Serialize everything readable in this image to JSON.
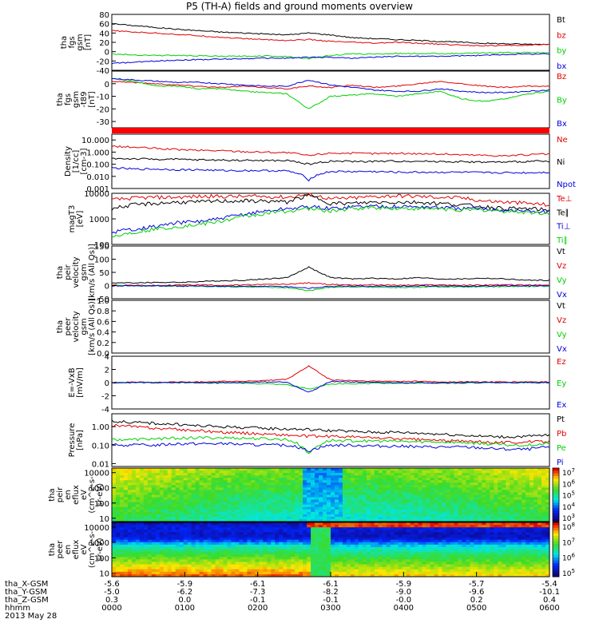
{
  "title": "P5 (TH-A) fields and ground moments overview",
  "colors": {
    "black": "#000000",
    "red": "#e00000",
    "green": "#00d000",
    "blue": "#0000e0"
  },
  "chart_data": [
    {
      "type": "line",
      "ylabel": [
        "tha",
        "fgs",
        "gsm",
        "[nT]"
      ],
      "ylim": [
        -40,
        80
      ],
      "yticks": [
        "80",
        "60",
        "40",
        "20",
        "0",
        "-20",
        "-40"
      ],
      "series": [
        {
          "name": "Bt",
          "color": "#000000",
          "values": [
            60,
            56,
            52,
            48,
            45,
            42,
            40,
            38,
            36,
            40,
            36,
            30,
            28,
            26,
            24,
            22,
            20,
            18,
            17,
            16,
            16
          ]
        },
        {
          "name": "bz",
          "color": "#e00000",
          "values": [
            45,
            42,
            40,
            37,
            34,
            31,
            28,
            26,
            24,
            26,
            22,
            20,
            18,
            20,
            18,
            16,
            14,
            13,
            13,
            14,
            15
          ]
        },
        {
          "name": "by",
          "color": "#00d000",
          "values": [
            -5,
            -7,
            -8,
            -8,
            -9,
            -10,
            -10,
            -9,
            -10,
            -15,
            -8,
            -5,
            -5,
            -4,
            -4,
            -4,
            -4,
            -3,
            -2,
            -2,
            -2
          ]
        },
        {
          "name": "bx",
          "color": "#0000e0",
          "values": [
            -25,
            -23,
            -20,
            -18,
            -17,
            -16,
            -15,
            -14,
            -14,
            -12,
            -12,
            -14,
            -12,
            -10,
            -10,
            -10,
            -9,
            -8,
            -6,
            -5,
            -5
          ]
        }
      ]
    },
    {
      "type": "line",
      "ylabel": [
        "tha",
        "fgs",
        "gsm",
        "-t89",
        "[nT]"
      ],
      "ylim": [
        -35,
        10
      ],
      "yticks": [
        "0",
        "-10",
        "-20",
        "-30"
      ],
      "series": [
        {
          "name": "Bz",
          "color": "#e00000",
          "values": [
            2,
            1,
            0,
            -1,
            -2,
            -3,
            -2,
            -3,
            -4,
            -2,
            -3,
            -1,
            -3,
            -2,
            0,
            2,
            0,
            -2,
            -3,
            -2,
            -2
          ]
        },
        {
          "name": "By",
          "color": "#00d000",
          "values": [
            4,
            2,
            -2,
            -2,
            -4,
            -4,
            -6,
            -7,
            -8,
            -20,
            -10,
            -9,
            -8,
            -10,
            -8,
            -6,
            -12,
            -14,
            -12,
            -8,
            -6
          ]
        },
        {
          "name": "Bx",
          "color": "#0000e0",
          "values": [
            4,
            3,
            2,
            1,
            1,
            0,
            -1,
            -2,
            -2,
            3,
            -1,
            -3,
            -5,
            -6,
            -6,
            -4,
            -6,
            -7,
            -7,
            -6,
            -5
          ]
        }
      ]
    },
    {
      "type": "line",
      "ylabel": [
        "Density",
        "[1/cc]",
        "[cm-3]"
      ],
      "yscale": "log",
      "ylim": [
        0.001,
        30
      ],
      "yticks": [
        "10.000",
        "1.000",
        "0.100",
        "0.010",
        "0.001"
      ],
      "series": [
        {
          "name": "Ne",
          "color": "#e00000",
          "values": [
            3.0,
            2.5,
            2.0,
            1.6,
            1.4,
            1.3,
            1.1,
            1.0,
            0.9,
            0.5,
            0.85,
            0.8,
            0.75,
            0.8,
            0.75,
            0.7,
            0.6,
            0.55,
            0.5,
            0.6,
            0.7
          ]
        },
        {
          "name": "Ni",
          "color": "#000000",
          "values": [
            0.3,
            0.28,
            0.26,
            0.25,
            0.23,
            0.22,
            0.21,
            0.2,
            0.2,
            0.1,
            0.18,
            0.17,
            0.17,
            0.18,
            0.18,
            0.17,
            0.16,
            0.15,
            0.15,
            0.17,
            0.18
          ]
        },
        {
          "name": "Npot",
          "color": "#0000e0",
          "values": [
            0.05,
            0.04,
            0.04,
            0.035,
            0.035,
            0.03,
            0.03,
            0.03,
            0.028,
            0.005,
            0.025,
            0.025,
            0.025,
            0.022,
            0.022,
            0.022,
            0.022,
            0.02,
            0.02,
            0.02,
            0.022
          ]
        }
      ]
    },
    {
      "type": "line",
      "ylabel": [
        "magT3",
        "[eV]"
      ],
      "yscale": "log",
      "ylim": [
        100,
        10000
      ],
      "yticks": [
        "10000",
        "1000",
        "100"
      ],
      "series": [
        {
          "name": "Te⊥",
          "color": "#e00000",
          "values": [
            5500,
            6500,
            7000,
            7000,
            7500,
            7500,
            7500,
            7500,
            7000,
            9000,
            6000,
            6500,
            7500,
            8000,
            7500,
            7000,
            6500,
            5000,
            4500,
            4000,
            3500
          ]
        },
        {
          "name": "Te∥",
          "color": "#000000",
          "values": [
            2500,
            3500,
            4000,
            4500,
            4500,
            5000,
            5000,
            5000,
            4500,
            8000,
            4000,
            4000,
            4500,
            4500,
            4500,
            4000,
            3500,
            3000,
            2500,
            2500,
            2200
          ]
        },
        {
          "name": "Ti⊥",
          "color": "#0000e0",
          "values": [
            300,
            400,
            500,
            700,
            800,
            1000,
            1500,
            2000,
            2500,
            3000,
            2500,
            3000,
            3200,
            3000,
            3000,
            2800,
            2500,
            2500,
            2200,
            2000,
            1800
          ]
        },
        {
          "name": "Ti∥",
          "color": "#00d000",
          "values": [
            200,
            300,
            400,
            500,
            600,
            800,
            1200,
            1600,
            2000,
            2500,
            2000,
            2500,
            2800,
            2600,
            2500,
            2500,
            2200,
            2200,
            2000,
            1800,
            1600
          ]
        }
      ]
    },
    {
      "type": "line",
      "ylabel": [
        "tha",
        "peir",
        "velocity",
        "gsm",
        "[km/s (All Qs)]"
      ],
      "ylim": [
        -50,
        150
      ],
      "yticks": [
        "150",
        "100",
        "50",
        "0",
        "-50"
      ],
      "series": [
        {
          "name": "Vt",
          "color": "#000000",
          "values": [
            10,
            10,
            12,
            12,
            15,
            18,
            20,
            25,
            30,
            70,
            30,
            25,
            28,
            25,
            30,
            25,
            25,
            28,
            25,
            20,
            20
          ]
        },
        {
          "name": "Vz",
          "color": "#e00000",
          "values": [
            2,
            1,
            0,
            2,
            3,
            1,
            2,
            4,
            5,
            10,
            4,
            2,
            3,
            1,
            2,
            3,
            1,
            2,
            3,
            2,
            1
          ]
        },
        {
          "name": "Vy",
          "color": "#00d000",
          "values": [
            0,
            -1,
            -2,
            -2,
            -3,
            -4,
            -5,
            -6,
            -8,
            -20,
            -6,
            -5,
            -6,
            -8,
            -6,
            -5,
            -6,
            -5,
            -4,
            -3,
            -2
          ]
        },
        {
          "name": "Vx",
          "color": "#0000e0",
          "values": [
            -1,
            -1,
            -1,
            -2,
            -2,
            -2,
            -3,
            -3,
            -4,
            -10,
            -3,
            -3,
            -2,
            -3,
            -2,
            -2,
            -2,
            -2,
            -1,
            -1,
            -1
          ]
        }
      ]
    },
    {
      "type": "line",
      "ylabel": [
        "tha",
        "peer",
        "velocity",
        "gsm",
        "[km/s (All Qs)]"
      ],
      "ylim": [
        0,
        1
      ],
      "yticks": [
        "1.0",
        "0.8",
        "0.6",
        "0.4",
        "0.2",
        "0.0"
      ],
      "series": [
        {
          "name": "Vt",
          "color": "#000000",
          "values": []
        },
        {
          "name": "Vz",
          "color": "#e00000",
          "values": []
        },
        {
          "name": "Vy",
          "color": "#00d000",
          "values": []
        },
        {
          "name": "Vx",
          "color": "#0000e0",
          "values": []
        }
      ]
    },
    {
      "type": "line",
      "ylabel": [
        "E=-VxB",
        "[mV/m]"
      ],
      "ylim": [
        -4,
        4
      ],
      "yticks": [
        "4",
        "2",
        "0",
        "-2",
        "-4"
      ],
      "series": [
        {
          "name": "Ez",
          "color": "#e00000",
          "values": [
            0,
            0.1,
            0,
            0.1,
            0.1,
            0.2,
            0.2,
            0.3,
            0.5,
            2.5,
            0.4,
            0.3,
            0.2,
            0.2,
            0.2,
            0.1,
            0.1,
            0.1,
            0.1,
            0.1,
            0.1
          ]
        },
        {
          "name": "Ey",
          "color": "#00d000",
          "values": [
            0,
            0,
            0,
            0,
            -0.1,
            -0.1,
            -0.1,
            -0.2,
            -0.3,
            -1.0,
            -0.2,
            -0.2,
            -0.1,
            -0.1,
            -0.1,
            -0.1,
            -0.1,
            0,
            0,
            0,
            0
          ]
        },
        {
          "name": "Ex",
          "color": "#0000e0",
          "values": [
            0,
            0,
            0,
            0,
            0,
            0,
            0,
            0.1,
            0.1,
            -1.5,
            0.2,
            0.1,
            0,
            0,
            0,
            0,
            0,
            0,
            0,
            0,
            0
          ]
        }
      ]
    },
    {
      "type": "line",
      "ylabel": [
        "Pressure",
        "[nPa]"
      ],
      "yscale": "log",
      "ylim": [
        0.007,
        5
      ],
      "yticks": [
        "1.00",
        "0.10",
        "0.01"
      ],
      "series": [
        {
          "name": "Pt",
          "color": "#000000",
          "values": [
            2.0,
            1.7,
            1.5,
            1.3,
            1.1,
            1.0,
            0.9,
            0.8,
            0.75,
            0.7,
            0.6,
            0.55,
            0.5,
            0.5,
            0.45,
            0.4,
            0.35,
            0.3,
            0.28,
            0.3,
            0.35
          ]
        },
        {
          "name": "Pb",
          "color": "#e00000",
          "values": [
            1.2,
            1.0,
            0.8,
            0.7,
            0.6,
            0.5,
            0.45,
            0.4,
            0.35,
            0.3,
            0.3,
            0.28,
            0.25,
            0.22,
            0.2,
            0.18,
            0.16,
            0.15,
            0.14,
            0.15,
            0.16
          ]
        },
        {
          "name": "Pe",
          "color": "#00d000",
          "values": [
            0.2,
            0.2,
            0.22,
            0.24,
            0.25,
            0.25,
            0.24,
            0.22,
            0.2,
            0.03,
            0.18,
            0.17,
            0.17,
            0.16,
            0.15,
            0.15,
            0.14,
            0.12,
            0.1,
            0.1,
            0.12
          ]
        },
        {
          "name": "Pi",
          "color": "#0000e0",
          "values": [
            0.1,
            0.1,
            0.1,
            0.12,
            0.12,
            0.12,
            0.11,
            0.1,
            0.1,
            0.05,
            0.1,
            0.1,
            0.09,
            0.09,
            0.08,
            0.08,
            0.08,
            0.07,
            0.06,
            0.06,
            0.08
          ]
        }
      ]
    },
    {
      "type": "heatmap",
      "ylabel": [
        "tha",
        "peir",
        "en",
        "eflux",
        "eV",
        "(cm^2-s-",
        "sr-eV)"
      ],
      "yscale": "log",
      "ylim": [
        6,
        20000
      ],
      "yticks": [
        "10000",
        "1000",
        "100",
        "10"
      ],
      "colorbar_ticks": [
        "10^7",
        "10^6",
        "10^5",
        "10^4",
        "10^3"
      ]
    },
    {
      "type": "heatmap",
      "ylabel": [
        "tha",
        "peer",
        "en",
        "eflux",
        "eV",
        "(cm^2-s-",
        "sr-eV)"
      ],
      "yscale": "log",
      "ylim": [
        6,
        20000
      ],
      "yticks": [
        "10000",
        "1000",
        "100",
        "10"
      ],
      "colorbar_ticks": [
        "10^8",
        "10^7",
        "10^6",
        "10^5"
      ]
    }
  ],
  "x_axis": {
    "ticks": [
      "0000",
      "0100",
      "0200",
      "0300",
      "0400",
      "0500",
      "0600"
    ],
    "rows": [
      {
        "label": "tha_X-GSM",
        "values": [
          "-5.6",
          "-5.9",
          "-6.1",
          "-6.1",
          "-5.9",
          "-5.7",
          "-5.4"
        ]
      },
      {
        "label": "tha_Y-GSM",
        "values": [
          "-5.0",
          "-6.2",
          "-7.3",
          "-8.2",
          "-9.0",
          "-9.6",
          "-10.1"
        ]
      },
      {
        "label": "tha_Z-GSM",
        "values": [
          "0.3",
          "0.0",
          "-0.1",
          "-0.1",
          "-0.0",
          "0.2",
          "0.4"
        ]
      },
      {
        "label": "hhmm",
        "values": [
          "0000",
          "0100",
          "0200",
          "0300",
          "0400",
          "0500",
          "0600"
        ]
      }
    ],
    "date": "2013 May 28"
  }
}
